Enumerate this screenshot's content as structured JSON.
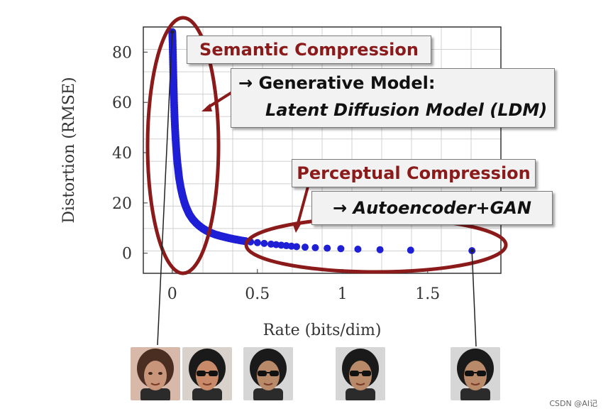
{
  "chart_data": {
    "type": "scatter",
    "title": "",
    "xlabel": "Rate (bits/dim)",
    "ylabel": "Distortion (RMSE)",
    "xlim": [
      -0.17,
      1.93
    ],
    "ylim": [
      -8,
      90
    ],
    "xticks": [
      0,
      0.5,
      1,
      1.5
    ],
    "xtick_labels": [
      "0",
      "0.5",
      "1",
      "1.5"
    ],
    "yticks": [
      0,
      20,
      40,
      60,
      80
    ],
    "ytick_labels": [
      "0",
      "20",
      "40",
      "60",
      "80"
    ],
    "grid": true,
    "point_color": "#1f1fd6",
    "series": [
      {
        "curve": "dense",
        "points": [
          [
            0.0,
            88
          ],
          [
            0.002,
            84
          ],
          [
            0.004,
            78
          ],
          [
            0.006,
            72
          ],
          [
            0.008,
            66
          ],
          [
            0.01,
            61
          ],
          [
            0.013,
            55
          ],
          [
            0.016,
            50
          ],
          [
            0.02,
            45
          ],
          [
            0.025,
            40
          ],
          [
            0.03,
            36
          ],
          [
            0.035,
            33
          ],
          [
            0.04,
            30
          ],
          [
            0.05,
            26
          ],
          [
            0.06,
            23
          ],
          [
            0.07,
            20.5
          ],
          [
            0.08,
            18.5
          ],
          [
            0.09,
            17
          ],
          [
            0.1,
            15.5
          ],
          [
            0.12,
            13.5
          ],
          [
            0.14,
            12
          ],
          [
            0.16,
            10.8
          ],
          [
            0.18,
            9.8
          ],
          [
            0.2,
            9
          ],
          [
            0.22,
            8.3
          ],
          [
            0.25,
            7.5
          ],
          [
            0.28,
            6.9
          ],
          [
            0.31,
            6.4
          ],
          [
            0.34,
            5.9
          ],
          [
            0.37,
            5.5
          ],
          [
            0.4,
            5.1
          ],
          [
            0.43,
            4.8
          ]
        ]
      },
      {
        "curve": "sparse",
        "points": [
          [
            0.46,
            4.5
          ],
          [
            0.5,
            4.2
          ],
          [
            0.54,
            3.9
          ],
          [
            0.58,
            3.6
          ],
          [
            0.61,
            3.4
          ],
          [
            0.64,
            3.2
          ],
          [
            0.67,
            3.0
          ],
          [
            0.7,
            2.8
          ],
          [
            0.73,
            2.6
          ],
          [
            0.78,
            2.4
          ],
          [
            0.84,
            2.2
          ],
          [
            0.91,
            2.0
          ],
          [
            0.99,
            1.8
          ],
          [
            1.09,
            1.6
          ],
          [
            1.22,
            1.4
          ],
          [
            1.4,
            1.2
          ],
          [
            1.76,
            1.0
          ]
        ]
      }
    ],
    "annotations": [
      {
        "text": "Semantic Compression",
        "color": "#8b1a1a"
      },
      {
        "text": "→ Generative Model:",
        "color": "#111111"
      },
      {
        "text": "Latent Diffusion Model (LDM)",
        "color": "#111111",
        "italic": true
      },
      {
        "text": "Perceptual Compression",
        "color": "#8b1a1a"
      },
      {
        "text": "→ Autoencoder+GAN",
        "color": "#111111",
        "italic": true
      }
    ],
    "highlight_color": "#8b1a1a"
  },
  "faces": [
    {
      "name": "face-1",
      "skin": "#c9957a",
      "hair": "#4a2e22",
      "bg": "#d8b8a8"
    },
    {
      "name": "face-2",
      "skin": "#c98a6a",
      "hair": "#1a1a1a",
      "bg": "#d9d2cc",
      "glasses": true
    },
    {
      "name": "face-3",
      "skin": "#b98a6a",
      "hair": "#1a1a1a",
      "bg": "#d6d6d6",
      "glasses": true
    },
    {
      "name": "face-4",
      "skin": "#b98a6a",
      "hair": "#1a1a1a",
      "bg": "#d6d6d6",
      "glasses": true
    },
    {
      "name": "face-5",
      "skin": "#b98a6a",
      "hair": "#1a1a1a",
      "bg": "#d6d6d6",
      "glasses": true
    }
  ],
  "watermark": "CSDN @AI记"
}
